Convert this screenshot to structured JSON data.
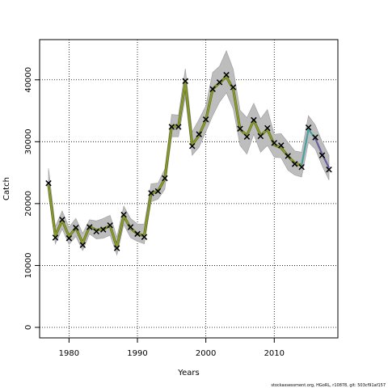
{
  "chart_data": {
    "type": "line",
    "xlabel": "Years",
    "ylabel": "Catch",
    "xlim": [
      1975.7,
      2019.3
    ],
    "ylim": [
      -1700,
      46500
    ],
    "xticks": [
      1980,
      1990,
      2000,
      2010
    ],
    "yticks": [
      0,
      10000,
      20000,
      30000,
      40000
    ],
    "grid": "dotted",
    "colors": {
      "band": "#bdbdbd",
      "band_edge": "#9a9a9a",
      "line_main": "#8c9a2e",
      "line_main_edge": "#5a6a18",
      "line_recent": "#4aa0a0",
      "line_last": "#6a5aa0",
      "marker": "#000000"
    },
    "series": [
      {
        "years": [
          1977,
          1978,
          1979,
          1980,
          1981,
          1982,
          1983,
          1984,
          1985,
          1986,
          1987,
          1988,
          1989,
          1990,
          1991,
          1992,
          1993,
          1994,
          1995,
          1996,
          1997,
          1998,
          1999,
          2000,
          2001,
          2002,
          2003,
          2004,
          2005,
          2006,
          2007,
          2008,
          2009,
          2010,
          2011,
          2012,
          2013,
          2014,
          2015,
          2016,
          2017,
          2018
        ],
        "fit": [
          23000,
          14800,
          17300,
          14700,
          16100,
          13600,
          16300,
          15700,
          15900,
          16400,
          13000,
          18000,
          16000,
          15100,
          14800,
          21700,
          22000,
          24000,
          32500,
          32500,
          39500,
          29500,
          31000,
          33500,
          38500,
          39500,
          40500,
          38500,
          32000,
          31000,
          33500,
          31000,
          32000,
          29500,
          29000,
          27700,
          26500,
          26200,
          32000,
          30500,
          28000,
          25800
        ],
        "upper": [
          25700,
          16300,
          18800,
          16200,
          17600,
          15200,
          17400,
          17200,
          17600,
          18100,
          14600,
          19600,
          17600,
          16700,
          16700,
          23200,
          23300,
          25600,
          34400,
          34300,
          41800,
          31600,
          33600,
          35800,
          41200,
          42200,
          44700,
          41700,
          35100,
          33900,
          36200,
          33700,
          35200,
          31200,
          31300,
          29900,
          28500,
          28300,
          34200,
          32700,
          30000,
          27800
        ],
        "lower": [
          21500,
          13500,
          15900,
          13400,
          14700,
          12400,
          15100,
          14300,
          14400,
          14900,
          11700,
          16600,
          14500,
          13900,
          13500,
          20300,
          20700,
          22300,
          30800,
          30800,
          37200,
          27800,
          29100,
          31600,
          34200,
          36400,
          37900,
          35300,
          29400,
          28000,
          31200,
          28300,
          29400,
          27500,
          27400,
          25400,
          24600,
          24300,
          29900,
          28800,
          26100,
          23800
        ],
        "observed": [
          23300,
          14500,
          17400,
          14400,
          16100,
          13300,
          16200,
          15500,
          15800,
          16500,
          12800,
          18200,
          16200,
          15100,
          14600,
          21700,
          22000,
          24100,
          32400,
          32400,
          39800,
          29300,
          31200,
          33600,
          38500,
          39600,
          40800,
          38800,
          32100,
          30800,
          33500,
          30900,
          32200,
          29800,
          29400,
          27700,
          26400,
          25900,
          32300,
          30700,
          27800,
          25500
        ],
        "recent_segment": [
          2014,
          2016
        ],
        "last_segment": [
          2016,
          2018
        ]
      }
    ]
  },
  "footer": "stockassessment.org, HGoRL, r10878, git: 503cf91af157"
}
